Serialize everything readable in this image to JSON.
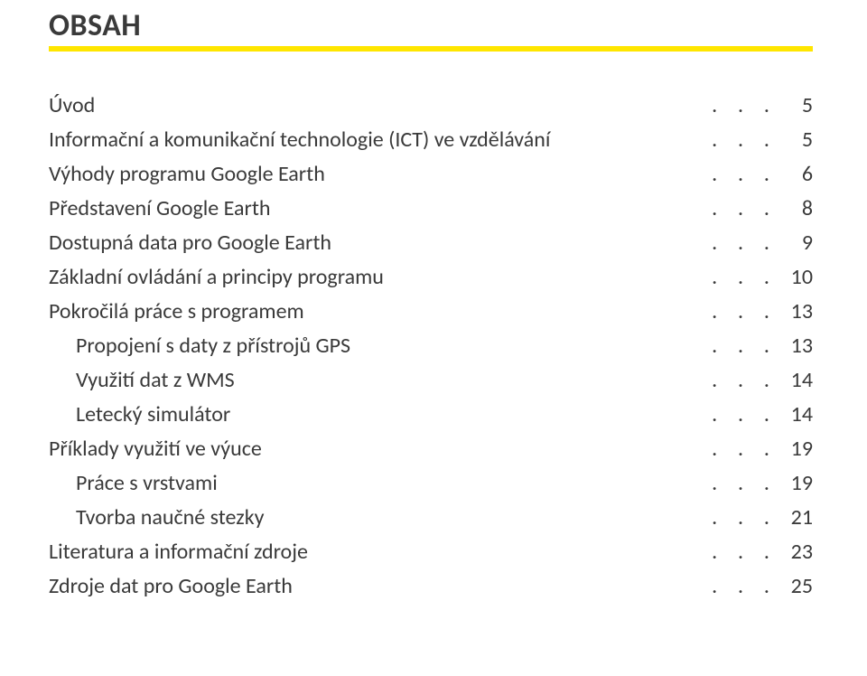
{
  "heading": "OBSAH",
  "colors": {
    "text": "#3a3a3a",
    "rule": "#ffe600",
    "background": "#ffffff"
  },
  "typography": {
    "heading_fontsize": 34,
    "heading_weight": 700,
    "body_fontsize": 24,
    "font_family": "Calibri"
  },
  "dots": ".  .  .",
  "toc": [
    {
      "title": "Úvod",
      "page": "5",
      "indent": 0
    },
    {
      "title": "Informační a komunikační technologie (ICT) ve vzdělávání",
      "page": "5",
      "indent": 0
    },
    {
      "title": "Výhody programu Google Earth",
      "page": "6",
      "indent": 0
    },
    {
      "title": "Představení Google Earth",
      "page": "8",
      "indent": 0
    },
    {
      "title": "Dostupná data pro Google Earth",
      "page": "9",
      "indent": 0
    },
    {
      "title": "Základní ovládání a principy programu",
      "page": "10",
      "indent": 0
    },
    {
      "title": "Pokročilá práce s programem",
      "page": "13",
      "indent": 0
    },
    {
      "title": "Propojení s daty z přístrojů GPS",
      "page": "13",
      "indent": 1
    },
    {
      "title": "Využití dat z WMS",
      "page": "14",
      "indent": 1
    },
    {
      "title": "Letecký simulátor",
      "page": "14",
      "indent": 1
    },
    {
      "title": "Příklady využití ve výuce",
      "page": "19",
      "indent": 0
    },
    {
      "title": "Práce s vrstvami",
      "page": "19",
      "indent": 1
    },
    {
      "title": "Tvorba naučné stezky",
      "page": "21",
      "indent": 1
    },
    {
      "title": "Literatura a informační zdroje",
      "page": "23",
      "indent": 0
    },
    {
      "title": "Zdroje dat pro Google Earth",
      "page": "25",
      "indent": 0
    }
  ]
}
